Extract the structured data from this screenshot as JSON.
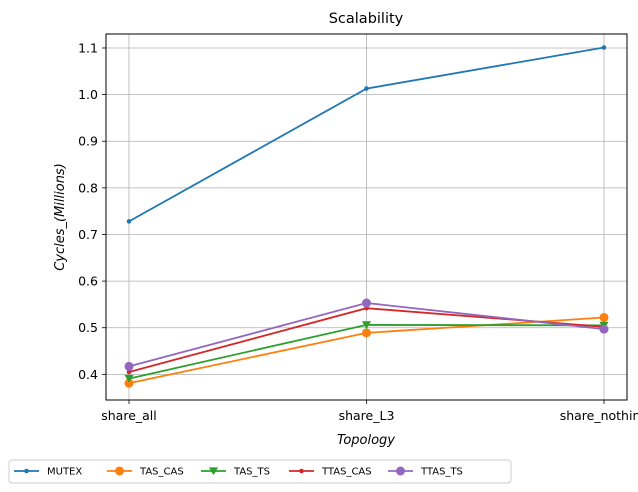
{
  "chart_data": {
    "type": "line",
    "title": "Scalability",
    "xlabel": "Topology",
    "ylabel": "Cycles_(Millions)",
    "categories": [
      "share_all",
      "share_L3",
      "share_nothing"
    ],
    "ylim": [
      0.345,
      1.13
    ],
    "yticks": [
      0.4,
      0.5,
      0.6,
      0.7,
      0.8,
      0.9,
      1.0,
      1.1
    ],
    "ytick_labels": [
      "0.4",
      "0.5",
      "0.6",
      "0.7",
      "0.8",
      "0.9",
      "1.0",
      "1.1"
    ],
    "grid": true,
    "legend_position": "bottom (below plot, single row)",
    "series": [
      {
        "name": "MUTEX",
        "values": [
          0.728,
          1.013,
          1.101
        ],
        "color": "#1f77b4",
        "marker": "small-circle"
      },
      {
        "name": "TAS_CAS",
        "values": [
          0.381,
          0.489,
          0.522
        ],
        "color": "#ff7f0e",
        "marker": "circle"
      },
      {
        "name": "TAS_TS",
        "values": [
          0.391,
          0.506,
          0.505
        ],
        "color": "#2ca02c",
        "marker": "triangle-down"
      },
      {
        "name": "TTAS_CAS",
        "values": [
          0.405,
          0.542,
          0.502
        ],
        "color": "#d62728",
        "marker": "small-circle"
      },
      {
        "name": "TTAS_TS",
        "values": [
          0.417,
          0.553,
          0.497
        ],
        "color": "#9467bd",
        "marker": "circle"
      }
    ]
  }
}
